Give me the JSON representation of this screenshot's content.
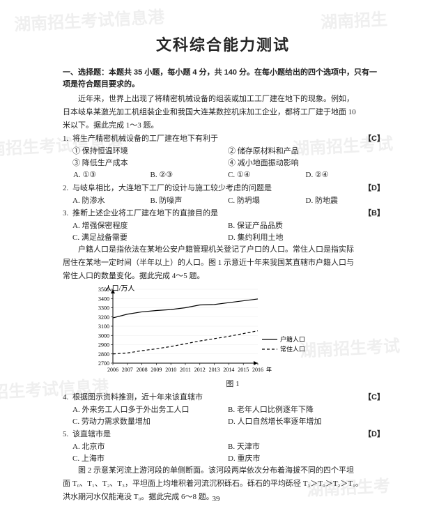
{
  "watermarks": [
    "湖南招生考试信息港",
    "湖南招生",
    "湖南招生考试信息港",
    "湖南招生考试",
    "湖南招生考试信息港",
    "湖南招生考试",
    "湖南招生考"
  ],
  "title": "文科综合能力测试",
  "section_header": "一、选择题：本题共 35 小题，每小题 4 分，共 140 分。在每小题给出的四个选项中，只有一项是符合题目要求的。",
  "intro1_line1": "近年来，世界上出现了将精密机械设备的组装或加工工厂建在地下的现象。例如，",
  "intro1_line2": "日本岐阜某激光加工机组装企业和我国大连某数控机床加工企业，都将工厂建于地面 10",
  "intro1_line3": "米以下。据此完成 1～3 题。",
  "q1": {
    "stem": "将生产精密机械设备的工厂建在地下有利于",
    "answer": "【C】",
    "i": [
      "① 保持恒温环境",
      "② 储存原材料和产品",
      "③ 降低生产成本",
      "④ 减小地面振动影响"
    ],
    "opts": [
      "A. ①③",
      "B. ②③",
      "C. ①④",
      "D. ②④"
    ]
  },
  "q2": {
    "stem": "与岐阜相比，大连地下工厂的设计与施工较少考虑的问题是",
    "answer": "【D】",
    "opts": [
      "A. 防渗水",
      "B. 防噪声",
      "C. 防坍塌",
      "D. 防地震"
    ]
  },
  "q3": {
    "stem": "推断上述企业将工厂建在地下的直接目的是",
    "answer": "【B】",
    "opts": [
      "A. 增强保密程度",
      "B. 保证产品品质",
      "C. 满足战备需要",
      "D. 集约利用土地"
    ]
  },
  "intro2_line1": "户籍人口是指依法在某地公安户籍管理机关登记了户口的人口。常住人口是指实际",
  "intro2_line2": "居住在某地一定时间（半年以上）的人口。图 1 示意近十年来我国某直辖市户籍人口与",
  "intro2_line3": "常住人口的数量变化。据此完成 4～5 题。",
  "chart": {
    "type": "line",
    "xlabel": "年",
    "ylabel": "人口/万人",
    "x_categories": [
      "2006",
      "2007",
      "2008",
      "2009",
      "2010",
      "2011",
      "2012",
      "2013",
      "2014",
      "2015",
      "2016"
    ],
    "ylim": [
      2700,
      3500
    ],
    "yticks": [
      2700,
      2800,
      2900,
      3000,
      3100,
      3200,
      3300,
      3400,
      3500
    ],
    "series": [
      {
        "name": "户籍人口",
        "style": "solid",
        "values": [
          3190,
          3230,
          3255,
          3270,
          3280,
          3300,
          3330,
          3335,
          3355,
          3375,
          3395
        ]
      },
      {
        "name": "常住人口",
        "style": "dash",
        "values": [
          2800,
          2810,
          2835,
          2855,
          2880,
          2910,
          2940,
          2965,
          2990,
          3020,
          3050
        ]
      }
    ],
    "legend_pos": "right",
    "colors": {
      "axis": "#000",
      "grid": "#888",
      "line": "#000",
      "text": "#000",
      "bg": "#fff"
    },
    "title_fontsize": 11,
    "label_fontsize": 10,
    "tick_fontsize": 8,
    "line_width": 1.2,
    "caption": "图 1"
  },
  "q4": {
    "stem": "根据图示资料推测，近十年来该直辖市",
    "answer": "【C】",
    "opts": [
      "A. 外来务工人口多于外出务工人口",
      "B. 老年人口比例逐年下降",
      "C. 劳动力需求数量增加",
      "D. 人口自然增长率逐年增加"
    ]
  },
  "q5": {
    "stem": "该直辖市是",
    "answer": "【D】",
    "opts": [
      "A. 北京市",
      "B. 天津市",
      "C. 上海市",
      "D. 重庆市"
    ]
  },
  "intro3_line1": "图 2 示意某河流上游河段的单侧断面。该河段两岸依次分布着海拔不同的四个平坦",
  "intro3_line2": "面 T₀、T₁、T₂、T₃，平坦面上均堆积着河流沉积砾石。砾石的平均砾径 T₃＞T₀＞T₂＞T₁。",
  "intro3_line3": "洪水期河水仅能淹没 T₀。据此完成 6～8 题。",
  "page_number": "39"
}
